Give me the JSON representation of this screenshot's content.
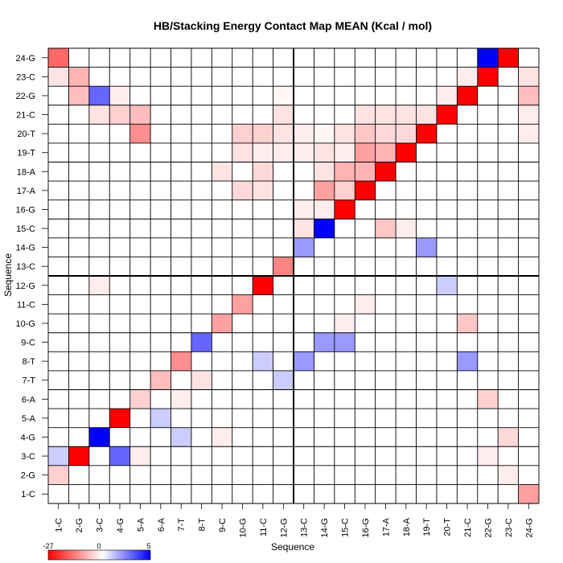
{
  "chart_data": {
    "type": "heatmap",
    "title": "HB/Stacking Energy Contact Map MEAN (Kcal / mol)",
    "xlabel": "Sequence",
    "ylabel": "Sequence",
    "labels": [
      "1-C",
      "2-G",
      "3-C",
      "4-G",
      "5-A",
      "6-A",
      "7-T",
      "8-T",
      "9-C",
      "10-G",
      "11-C",
      "12-G",
      "13-C",
      "14-G",
      "15-C",
      "16-G",
      "17-A",
      "18-A",
      "19-T",
      "20-T",
      "21-C",
      "22-G",
      "23-C",
      "24-G"
    ],
    "colorbar": {
      "min": -27,
      "mid": 0,
      "max": 5,
      "low_color": "#ff0000",
      "mid_color": "#ffffff",
      "high_color": "#0000ff",
      "tick_labels": [
        "-27",
        "0",
        "5"
      ]
    },
    "divider_after_index": 12,
    "cells": [
      [
        1,
        2,
        -5
      ],
      [
        1,
        3,
        1
      ],
      [
        1,
        24,
        -16
      ],
      [
        1,
        23,
        -3
      ],
      [
        2,
        3,
        -27
      ],
      [
        2,
        22,
        -7
      ],
      [
        2,
        23,
        -8
      ],
      [
        3,
        4,
        5
      ],
      [
        3,
        22,
        3
      ],
      [
        3,
        21,
        -3
      ],
      [
        3,
        12,
        -2
      ],
      [
        4,
        5,
        -27
      ],
      [
        4,
        21,
        -5
      ],
      [
        4,
        22,
        -2
      ],
      [
        4,
        3,
        3
      ],
      [
        5,
        6,
        -5
      ],
      [
        5,
        20,
        -12
      ],
      [
        5,
        21,
        -7
      ],
      [
        5,
        3,
        -2
      ],
      [
        6,
        7,
        -7
      ],
      [
        6,
        5,
        1
      ],
      [
        7,
        8,
        -12
      ],
      [
        7,
        4,
        1
      ],
      [
        7,
        6,
        -2
      ],
      [
        8,
        9,
        3
      ],
      [
        8,
        7,
        -3
      ],
      [
        9,
        10,
        -10
      ],
      [
        9,
        4,
        -2
      ],
      [
        9,
        18,
        -3
      ],
      [
        10,
        11,
        -10
      ],
      [
        10,
        20,
        -5
      ],
      [
        10,
        17,
        -4
      ],
      [
        10,
        19,
        -3
      ],
      [
        11,
        12,
        -27
      ],
      [
        11,
        20,
        -5
      ],
      [
        11,
        18,
        -4
      ],
      [
        11,
        19,
        -2
      ],
      [
        11,
        17,
        -3
      ],
      [
        11,
        8,
        1
      ],
      [
        12,
        13,
        -13
      ],
      [
        12,
        20,
        -3
      ],
      [
        12,
        21,
        -3
      ],
      [
        12,
        22,
        -1
      ],
      [
        12,
        19,
        -2
      ],
      [
        12,
        7,
        1
      ],
      [
        13,
        14,
        2
      ],
      [
        13,
        15,
        -3
      ],
      [
        13,
        16,
        -2
      ],
      [
        13,
        20,
        -2
      ],
      [
        13,
        19,
        -2
      ],
      [
        13,
        8,
        2
      ],
      [
        14,
        15,
        5
      ],
      [
        14,
        16,
        -2
      ],
      [
        14,
        17,
        -10
      ],
      [
        14,
        18,
        -3
      ],
      [
        14,
        19,
        -3
      ],
      [
        14,
        20,
        -1
      ],
      [
        14,
        9,
        2
      ],
      [
        15,
        16,
        -27
      ],
      [
        15,
        17,
        -5
      ],
      [
        15,
        18,
        -8
      ],
      [
        15,
        19,
        -2
      ],
      [
        15,
        20,
        -3
      ],
      [
        15,
        10,
        -2
      ],
      [
        15,
        9,
        2
      ],
      [
        16,
        17,
        -27
      ],
      [
        16,
        18,
        -8
      ],
      [
        16,
        19,
        -10
      ],
      [
        16,
        20,
        -6
      ],
      [
        16,
        21,
        -3
      ],
      [
        16,
        11,
        -2
      ],
      [
        17,
        18,
        -27
      ],
      [
        17,
        19,
        -8
      ],
      [
        17,
        20,
        -4
      ],
      [
        17,
        21,
        -3
      ],
      [
        17,
        15,
        -6
      ],
      [
        18,
        19,
        -27
      ],
      [
        18,
        20,
        -4
      ],
      [
        18,
        21,
        -3
      ],
      [
        18,
        15,
        -2
      ],
      [
        19,
        20,
        -27
      ],
      [
        19,
        21,
        -3
      ],
      [
        19,
        14,
        2
      ],
      [
        20,
        21,
        -27
      ],
      [
        20,
        22,
        -2
      ],
      [
        20,
        12,
        1
      ],
      [
        21,
        22,
        -27
      ],
      [
        21,
        23,
        -2
      ],
      [
        21,
        10,
        -6
      ],
      [
        21,
        8,
        2
      ],
      [
        22,
        23,
        -27
      ],
      [
        22,
        24,
        5
      ],
      [
        22,
        6,
        -5
      ],
      [
        22,
        3,
        -2
      ],
      [
        23,
        24,
        -27
      ],
      [
        23,
        4,
        -4
      ],
      [
        23,
        2,
        -2
      ],
      [
        24,
        22,
        -7
      ],
      [
        24,
        23,
        -3
      ],
      [
        24,
        1,
        -10
      ],
      [
        24,
        21,
        -2
      ],
      [
        24,
        20,
        -2
      ]
    ]
  }
}
